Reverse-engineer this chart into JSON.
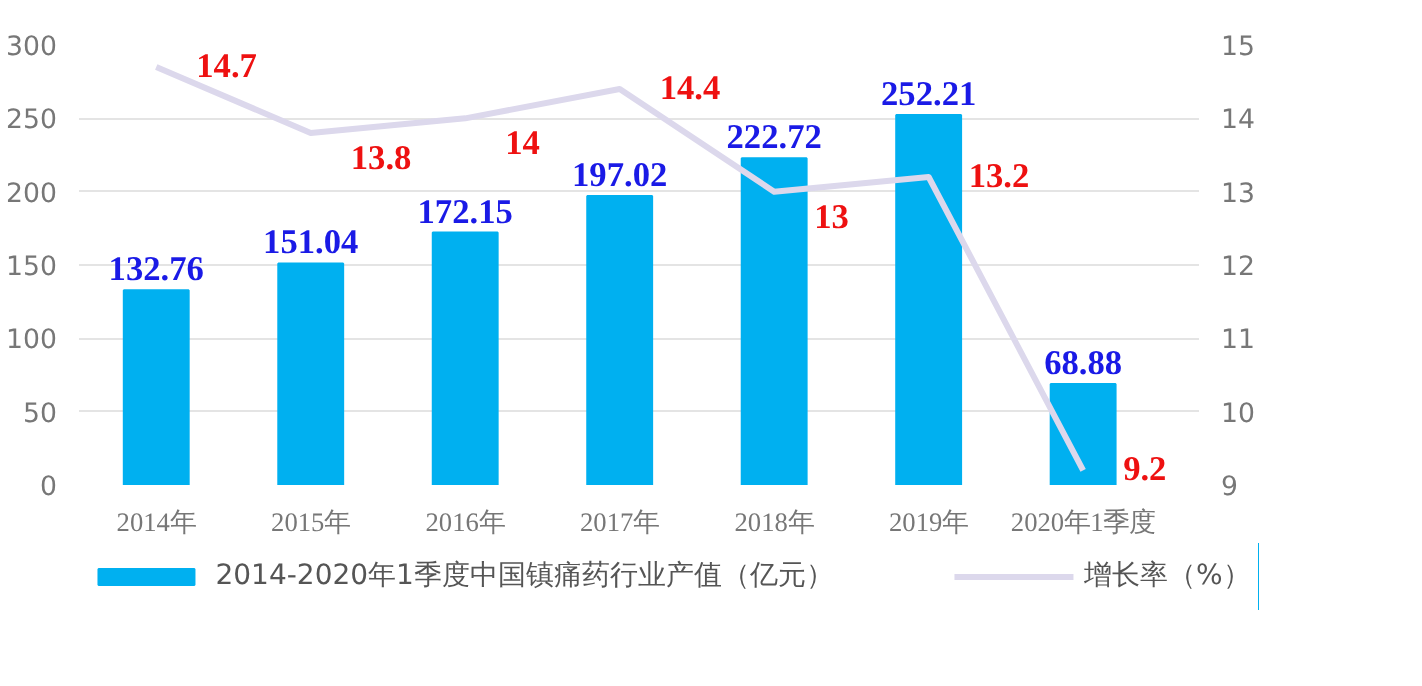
{
  "chart_data": {
    "type": "bar",
    "categories": [
      "2014年",
      "2015年",
      "2016年",
      "2017年",
      "2018年",
      "2019年",
      "2020年1季度"
    ],
    "series": [
      {
        "name": "2014-2020年1季度中国镇痛药行业产值（亿元）",
        "color": "#00b0f0",
        "values": [
          132.76,
          151.04,
          172.15,
          197.02,
          222.72,
          252.21,
          68.88
        ]
      },
      {
        "name": "增长率（%）",
        "type": "line",
        "axis": "y2",
        "color": "#dcd8ec",
        "values": [
          14.7,
          13.8,
          14,
          14.4,
          13,
          13.2,
          9.2
        ]
      }
    ],
    "ylim": [
      0,
      300
    ],
    "yticks": [
      0,
      50,
      100,
      150,
      200,
      250,
      300
    ],
    "y2lim": [
      9,
      15
    ],
    "y2ticks": [
      9,
      10,
      11,
      12,
      13,
      14,
      15
    ],
    "grid": "y",
    "legend": "bottom",
    "data_labels": true
  }
}
